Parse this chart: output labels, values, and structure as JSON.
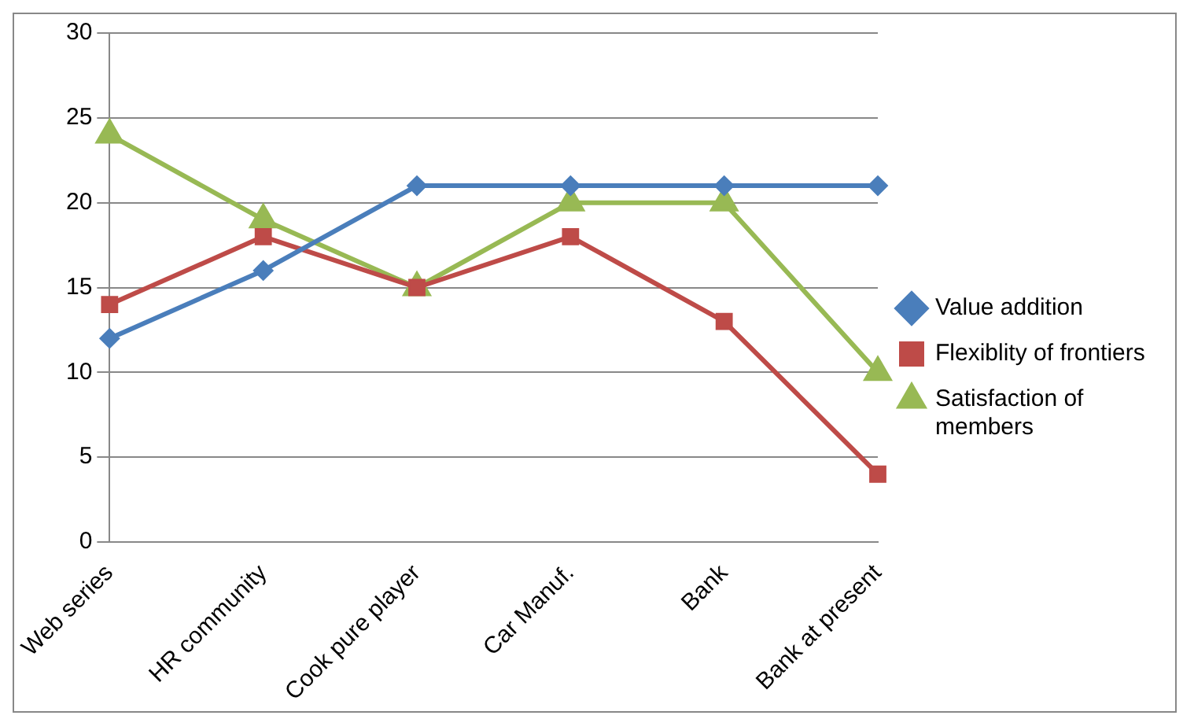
{
  "chart_data": {
    "type": "line",
    "categories": [
      "Web series",
      "HR community",
      "Cook pure player",
      "Car Manuf.",
      "Bank",
      "Bank at present"
    ],
    "series": [
      {
        "name": "Value addition",
        "color": "#4a7ebb",
        "values": [
          12,
          16,
          21,
          21,
          21,
          21
        ],
        "marker": "diamond"
      },
      {
        "name": "Flexiblity of frontiers",
        "color": "#be4b48",
        "values": [
          14,
          18,
          15,
          18,
          13,
          4
        ],
        "marker": "square"
      },
      {
        "name": "Satisfaction of members",
        "color": "#98b954",
        "values": [
          24,
          19,
          15,
          20,
          20,
          10
        ],
        "marker": "triangle"
      }
    ],
    "ylim": [
      0,
      30
    ],
    "yticks": [
      0,
      5,
      10,
      15,
      20,
      25,
      30
    ],
    "grid": "y",
    "legend": "right"
  }
}
